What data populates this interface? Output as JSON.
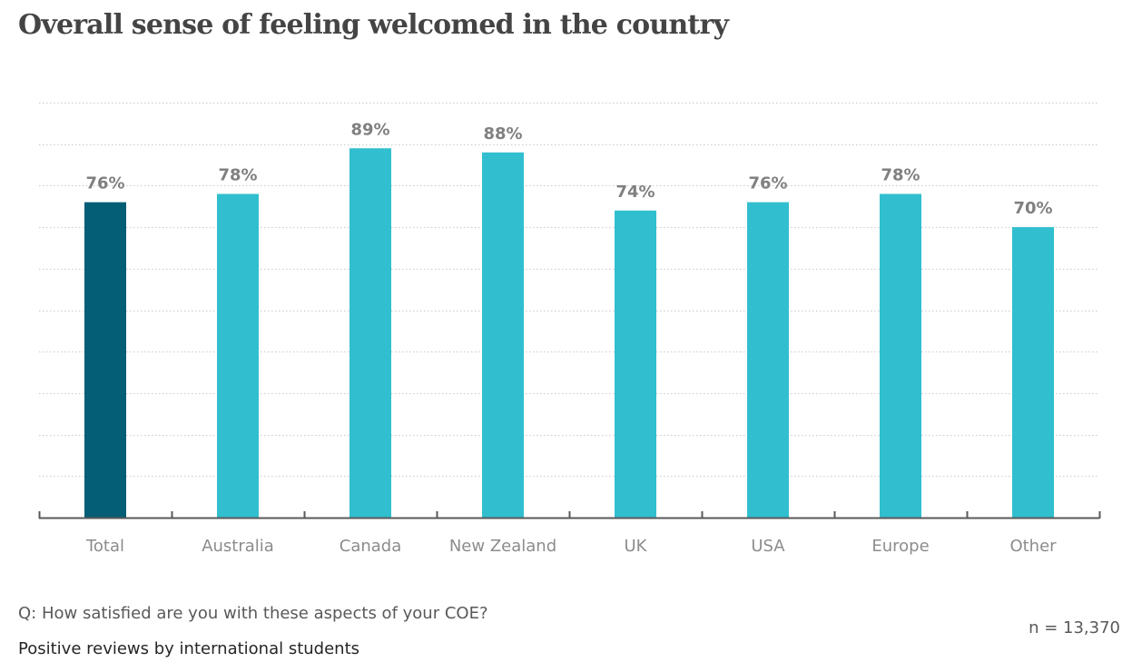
{
  "title": "Overall sense of feeling welcomed in the country",
  "footer": {
    "question": "Q: How satisfied are you with these aspects of your COE?",
    "subtitle": "Positive reviews by international students",
    "sample_size": "n = 13,370"
  },
  "colors": {
    "highlight_bar": "#045e75",
    "bar": "#31bfcf",
    "data_label": "#808080",
    "axis": "#595959",
    "grid": "#d0d0d0"
  },
  "chart_data": {
    "type": "bar",
    "title": "Overall sense of feeling welcomed in the country",
    "xlabel": "",
    "ylabel": "",
    "categories": [
      "Total",
      "Australia",
      "Canada",
      "New Zealand",
      "UK",
      "USA",
      "Europe",
      "Other"
    ],
    "values": [
      76,
      78,
      89,
      88,
      74,
      76,
      78,
      70
    ],
    "labels": [
      "76%",
      "78%",
      "89%",
      "88%",
      "74%",
      "76%",
      "78%",
      "70%"
    ],
    "highlight": [
      "Total"
    ],
    "unit": "%",
    "ylim": [
      0,
      100
    ],
    "grid_step": 10,
    "grid": true,
    "y_tick_labels_shown": false,
    "legend": "none"
  }
}
